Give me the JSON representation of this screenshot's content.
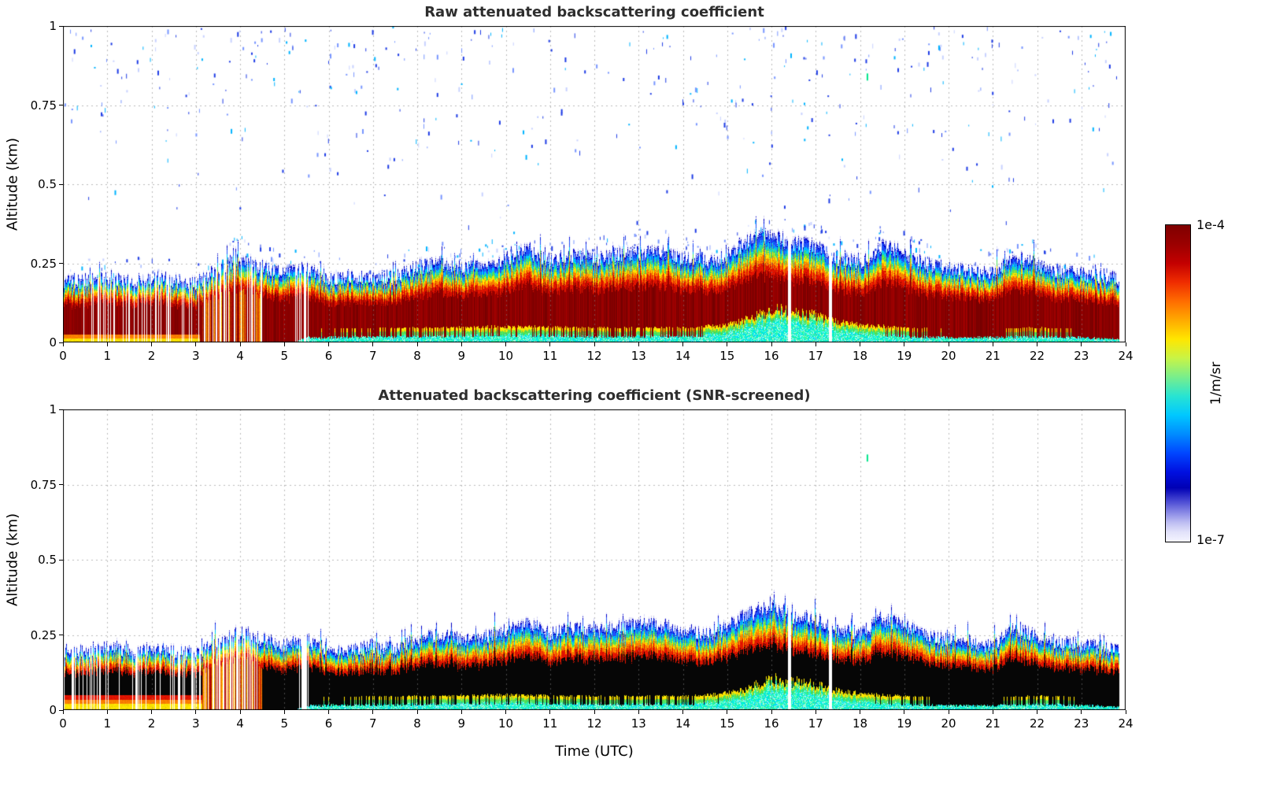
{
  "figure": {
    "background": "#ffffff"
  },
  "colorbar": {
    "max_label": "1e-4",
    "min_label": "1e-7",
    "unit_label": "1/m/sr",
    "gradient_stops": [
      [
        0,
        "#7f0000"
      ],
      [
        6,
        "#9b0000"
      ],
      [
        12,
        "#c30000"
      ],
      [
        18,
        "#ef2c00"
      ],
      [
        24,
        "#ff6c00"
      ],
      [
        30,
        "#ffaa00"
      ],
      [
        36,
        "#ffe600"
      ],
      [
        42,
        "#c8f446"
      ],
      [
        48,
        "#78ee8c"
      ],
      [
        54,
        "#28e4d2"
      ],
      [
        60,
        "#00c8ff"
      ],
      [
        66,
        "#008cff"
      ],
      [
        72,
        "#0046ff"
      ],
      [
        78,
        "#0010e0"
      ],
      [
        83,
        "#0000b4"
      ],
      [
        87,
        "#4646d2"
      ],
      [
        91,
        "#8c8ce6"
      ],
      [
        94,
        "#bebef2"
      ],
      [
        97,
        "#e2e2fa"
      ],
      [
        100,
        "#f4f4ff"
      ]
    ]
  },
  "palette": {
    "core_raw": "#8b0000",
    "core_screened": "#060606",
    "red": "#e01400",
    "orange": "#ff7f00",
    "yellow": "#ffe200",
    "green": "#50e05a",
    "cyan": "#00c8ff",
    "blue": "#1e50ff",
    "dark_blue": "#0000c8",
    "pale_blue": "#d8d8fa",
    "warm_core": [
      "#c83200",
      "#ff7f00",
      "#b40a05",
      "#ffc800",
      "#8b0000"
    ],
    "surface_cyan": [
      "#00ffc8",
      "#3cffa0",
      "#00dcff",
      "#b4ffe6"
    ],
    "speckle_colors": [
      "#1e3ce6",
      "#00b4ff",
      "#7896ff",
      "#c8d2ff"
    ],
    "isolated_speck_color": "#00e68c"
  },
  "chart_data": [
    {
      "type": "heatmap",
      "title": "Raw attenuated backscattering coefficient",
      "xlabel": "",
      "ylabel": "Altitude (km)",
      "xlim": [
        0,
        24
      ],
      "ylim": [
        0,
        1
      ],
      "x_ticks": [
        0,
        1,
        2,
        3,
        4,
        5,
        6,
        7,
        8,
        9,
        10,
        11,
        12,
        13,
        14,
        15,
        16,
        17,
        18,
        19,
        20,
        21,
        22,
        23,
        24
      ],
      "y_ticks": [
        0,
        0.25,
        0.5,
        0.75,
        1
      ],
      "value_scale": "log",
      "value_range": [
        "1e-7",
        "1e-4"
      ],
      "style": "raw",
      "seed": 11,
      "data_end_t": 23.85,
      "layer_top_profile": {
        "t": [
          0,
          0.5,
          1,
          1.5,
          2,
          2.5,
          3,
          3.5,
          4,
          4.5,
          5,
          5.5,
          6,
          6.5,
          7,
          7.5,
          8,
          8.5,
          9,
          9.5,
          10,
          10.5,
          11,
          11.5,
          12,
          12.5,
          13,
          13.5,
          14,
          14.5,
          15,
          15.5,
          16,
          16.5,
          17,
          17.5,
          18,
          18.5,
          19,
          19.5,
          20,
          20.5,
          21,
          21.5,
          22,
          22.5,
          23,
          23.5,
          24
        ],
        "h_km": [
          0.2,
          0.2,
          0.21,
          0.2,
          0.21,
          0.2,
          0.19,
          0.24,
          0.27,
          0.24,
          0.22,
          0.24,
          0.2,
          0.21,
          0.21,
          0.21,
          0.24,
          0.26,
          0.24,
          0.25,
          0.27,
          0.3,
          0.26,
          0.28,
          0.27,
          0.28,
          0.29,
          0.29,
          0.27,
          0.26,
          0.28,
          0.33,
          0.35,
          0.32,
          0.31,
          0.27,
          0.26,
          0.31,
          0.29,
          0.25,
          0.24,
          0.23,
          0.22,
          0.28,
          0.25,
          0.23,
          0.22,
          0.21,
          0.2
        ]
      },
      "surface_cyan_profile": {
        "t": [
          0,
          5.2,
          5.5,
          8,
          10,
          12,
          14,
          15,
          15.5,
          16,
          16.5,
          17,
          17.5,
          18,
          19,
          20,
          21,
          22,
          23,
          24
        ],
        "depth_km": [
          0,
          0,
          0.015,
          0.02,
          0.025,
          0.02,
          0.02,
          0.03,
          0.05,
          0.08,
          0.07,
          0.06,
          0.04,
          0.03,
          0.02,
          0.015,
          0.015,
          0.02,
          0.015,
          0.01
        ]
      },
      "gap_intervals_t": [
        [
          16.38,
          16.45
        ],
        [
          17.3,
          17.36
        ]
      ],
      "striped_intervals": [
        [
          0,
          3.15,
          0.17
        ],
        [
          5.25,
          5.55,
          0.5
        ]
      ],
      "warm_intervals": [
        [
          3.15,
          4.5,
          0.3
        ]
      ],
      "noise_speckles": true,
      "isolated_speck": {
        "t": 18.15,
        "alt_km": 0.85
      }
    },
    {
      "type": "heatmap",
      "title": "Attenuated backscattering coefficient (SNR-screened)",
      "xlabel": "Time (UTC)",
      "ylabel": "Altitude (km)",
      "xlim": [
        0,
        24
      ],
      "ylim": [
        0,
        1
      ],
      "x_ticks": [
        0,
        1,
        2,
        3,
        4,
        5,
        6,
        7,
        8,
        9,
        10,
        11,
        12,
        13,
        14,
        15,
        16,
        17,
        18,
        19,
        20,
        21,
        22,
        23,
        24
      ],
      "y_ticks": [
        0,
        0.25,
        0.5,
        0.75,
        1
      ],
      "value_scale": "log",
      "value_range": [
        "1e-7",
        "1e-4"
      ],
      "style": "screened",
      "seed": 12,
      "data_end_t": 23.85,
      "layer_top_profile": {
        "t": [
          0,
          0.5,
          1,
          1.5,
          2,
          2.5,
          3,
          3.5,
          4,
          4.5,
          5,
          5.5,
          6,
          6.5,
          7,
          7.5,
          8,
          8.5,
          9,
          9.5,
          10,
          10.5,
          11,
          11.5,
          12,
          12.5,
          13,
          13.5,
          14,
          14.5,
          15,
          15.5,
          16,
          16.5,
          17,
          17.5,
          18,
          18.5,
          19,
          19.5,
          20,
          20.5,
          21,
          21.5,
          22,
          22.5,
          23,
          23.5,
          24
        ],
        "h_km": [
          0.2,
          0.2,
          0.21,
          0.2,
          0.21,
          0.2,
          0.19,
          0.24,
          0.27,
          0.24,
          0.22,
          0.24,
          0.2,
          0.21,
          0.21,
          0.21,
          0.24,
          0.26,
          0.24,
          0.25,
          0.27,
          0.3,
          0.26,
          0.28,
          0.27,
          0.28,
          0.29,
          0.29,
          0.27,
          0.26,
          0.28,
          0.33,
          0.35,
          0.32,
          0.31,
          0.27,
          0.26,
          0.31,
          0.29,
          0.25,
          0.24,
          0.23,
          0.22,
          0.28,
          0.25,
          0.23,
          0.22,
          0.21,
          0.2
        ]
      },
      "surface_cyan_profile": {
        "t": [
          0,
          5.2,
          5.5,
          8,
          10,
          12,
          14,
          15,
          15.5,
          16,
          16.5,
          17,
          17.5,
          18,
          19,
          20,
          21,
          22,
          23,
          24
        ],
        "depth_km": [
          0,
          0,
          0.015,
          0.02,
          0.025,
          0.02,
          0.02,
          0.03,
          0.05,
          0.08,
          0.07,
          0.06,
          0.04,
          0.03,
          0.02,
          0.015,
          0.015,
          0.02,
          0.015,
          0.01
        ]
      },
      "gap_intervals_t": [
        [
          16.38,
          16.45
        ],
        [
          17.3,
          17.36
        ]
      ],
      "striped_intervals": [
        [
          0,
          3.15,
          0.17
        ],
        [
          5.25,
          5.55,
          0.5
        ]
      ],
      "warm_intervals": [
        [
          3.15,
          4.5,
          0.3
        ]
      ],
      "noise_speckles": false,
      "isolated_speck": {
        "t": 18.15,
        "alt_km": 0.85
      }
    }
  ]
}
